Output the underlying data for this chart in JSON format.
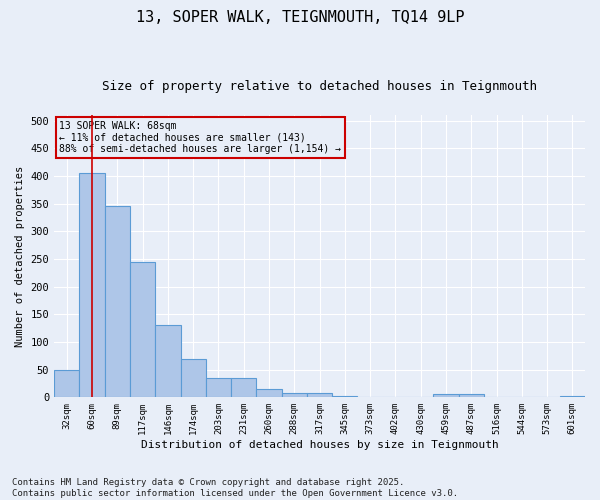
{
  "title": "13, SOPER WALK, TEIGNMOUTH, TQ14 9LP",
  "subtitle": "Size of property relative to detached houses in Teignmouth",
  "xlabel": "Distribution of detached houses by size in Teignmouth",
  "ylabel": "Number of detached properties",
  "categories": [
    "32sqm",
    "60sqm",
    "89sqm",
    "117sqm",
    "146sqm",
    "174sqm",
    "203sqm",
    "231sqm",
    "260sqm",
    "288sqm",
    "317sqm",
    "345sqm",
    "373sqm",
    "402sqm",
    "430sqm",
    "459sqm",
    "487sqm",
    "516sqm",
    "544sqm",
    "573sqm",
    "601sqm"
  ],
  "values": [
    50,
    405,
    345,
    245,
    130,
    70,
    35,
    35,
    15,
    7,
    7,
    2,
    0,
    0,
    0,
    6,
    6,
    0,
    0,
    0,
    2
  ],
  "bar_color": "#aec6e8",
  "bar_edge_color": "#5b9bd5",
  "property_line_x": 1.0,
  "property_line_color": "#cc0000",
  "annotation_line1": "13 SOPER WALK: 68sqm",
  "annotation_line2": "← 11% of detached houses are smaller (143)",
  "annotation_line3": "88% of semi-detached houses are larger (1,154) →",
  "annotation_box_color": "#cc0000",
  "ylim": [
    0,
    510
  ],
  "yticks": [
    0,
    50,
    100,
    150,
    200,
    250,
    300,
    350,
    400,
    450,
    500
  ],
  "footnote": "Contains HM Land Registry data © Crown copyright and database right 2025.\nContains public sector information licensed under the Open Government Licence v3.0.",
  "background_color": "#e8eef8",
  "grid_color": "#ffffff",
  "title_fontsize": 11,
  "subtitle_fontsize": 9,
  "footnote_fontsize": 6.5
}
